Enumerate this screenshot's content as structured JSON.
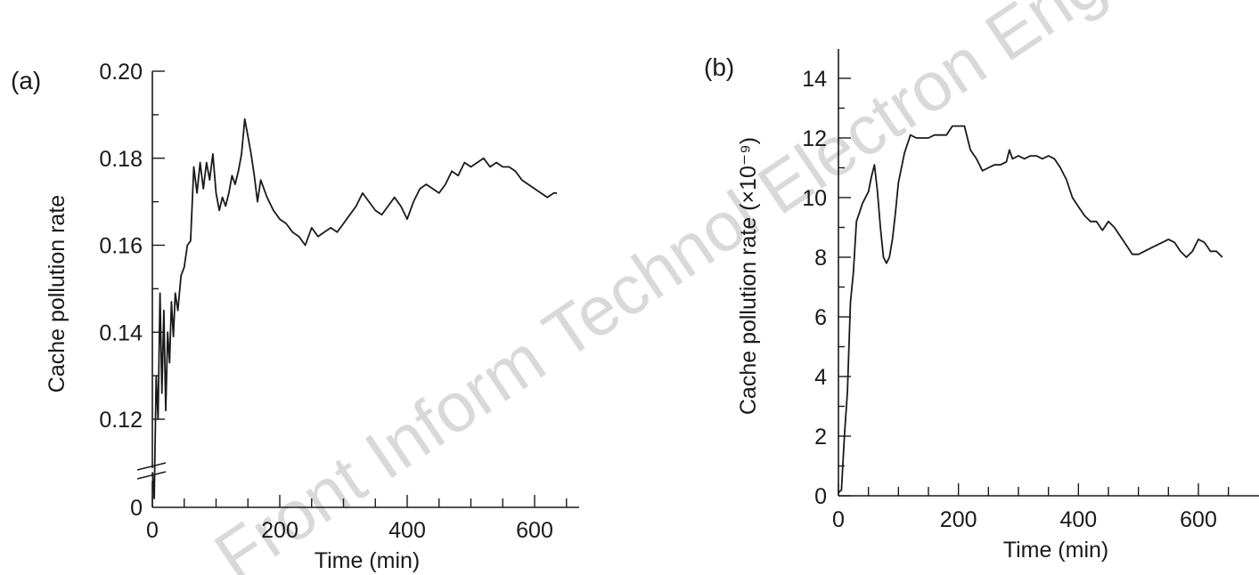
{
  "watermark": "Front Inform Technol Electron Eng",
  "chart_data": [
    {
      "panel_label": "(a)",
      "type": "line",
      "xlabel": "Time (min)",
      "ylabel": "Cache pollution rate",
      "x_ticks": [
        "0",
        "200",
        "400",
        "600"
      ],
      "y_ticks": [
        "0",
        "0.12",
        "0.14",
        "0.16",
        "0.18",
        "0.20"
      ],
      "xlim": [
        0,
        700
      ],
      "ylim": [
        0.1,
        0.2
      ],
      "axis_break": "between 0 and 0.12",
      "grid": false,
      "series": [
        {
          "x": [
            0,
            3,
            6,
            9,
            12,
            15,
            18,
            21,
            24,
            27,
            30,
            33,
            36,
            40,
            45,
            50,
            55,
            60,
            65,
            70,
            75,
            80,
            85,
            90,
            95,
            100,
            105,
            110,
            115,
            120,
            125,
            130,
            135,
            140,
            145,
            150,
            155,
            160,
            165,
            170,
            180,
            190,
            200,
            210,
            220,
            230,
            240,
            250,
            260,
            270,
            280,
            290,
            300,
            310,
            320,
            330,
            340,
            350,
            360,
            370,
            380,
            390,
            400,
            410,
            420,
            430,
            440,
            450,
            460,
            470,
            480,
            490,
            500,
            510,
            520,
            530,
            540,
            550,
            560,
            570,
            580,
            590,
            600,
            610,
            620,
            630,
            635
          ],
          "y": [
            0.108,
            0.102,
            0.13,
            0.12,
            0.149,
            0.126,
            0.145,
            0.122,
            0.14,
            0.133,
            0.147,
            0.139,
            0.149,
            0.145,
            0.153,
            0.155,
            0.16,
            0.161,
            0.178,
            0.172,
            0.179,
            0.173,
            0.179,
            0.175,
            0.181,
            0.172,
            0.168,
            0.171,
            0.169,
            0.172,
            0.176,
            0.174,
            0.177,
            0.181,
            0.189,
            0.185,
            0.181,
            0.176,
            0.17,
            0.175,
            0.171,
            0.168,
            0.166,
            0.165,
            0.163,
            0.162,
            0.16,
            0.164,
            0.162,
            0.163,
            0.164,
            0.163,
            0.165,
            0.167,
            0.169,
            0.172,
            0.17,
            0.168,
            0.167,
            0.169,
            0.171,
            0.169,
            0.166,
            0.17,
            0.173,
            0.174,
            0.173,
            0.172,
            0.174,
            0.177,
            0.176,
            0.179,
            0.178,
            0.179,
            0.18,
            0.178,
            0.179,
            0.178,
            0.178,
            0.177,
            0.175,
            0.174,
            0.173,
            0.172,
            0.171,
            0.172,
            0.172
          ]
        }
      ]
    },
    {
      "panel_label": "(b)",
      "type": "line",
      "xlabel": "Time (min)",
      "ylabel": "Cache pollution rate (×10⁻⁹)",
      "x_ticks": [
        "0",
        "200",
        "400",
        "600"
      ],
      "y_ticks": [
        "0",
        "2",
        "4",
        "6",
        "8",
        "10",
        "12",
        "14"
      ],
      "xlim": [
        0,
        700
      ],
      "ylim": [
        0,
        15
      ],
      "grid": false,
      "series": [
        {
          "x": [
            0,
            5,
            10,
            15,
            20,
            25,
            30,
            35,
            40,
            45,
            50,
            55,
            60,
            65,
            70,
            75,
            80,
            85,
            90,
            95,
            100,
            110,
            120,
            130,
            140,
            150,
            160,
            170,
            180,
            190,
            200,
            210,
            220,
            230,
            240,
            250,
            260,
            270,
            280,
            285,
            290,
            300,
            310,
            320,
            330,
            340,
            350,
            360,
            370,
            380,
            390,
            400,
            410,
            420,
            430,
            440,
            450,
            460,
            470,
            480,
            490,
            500,
            510,
            520,
            530,
            540,
            550,
            560,
            570,
            580,
            590,
            600,
            610,
            620,
            630,
            640
          ],
          "y": [
            0.1,
            0.2,
            2.0,
            3.5,
            6.5,
            7.5,
            9.2,
            9.5,
            9.8,
            10.0,
            10.2,
            10.7,
            11.1,
            10.2,
            9.0,
            8.0,
            7.8,
            8.0,
            8.6,
            9.5,
            10.5,
            11.5,
            12.1,
            12.0,
            12.0,
            12.0,
            12.1,
            12.1,
            12.1,
            12.4,
            12.4,
            12.4,
            11.6,
            11.3,
            10.9,
            11.0,
            11.1,
            11.1,
            11.2,
            11.6,
            11.3,
            11.4,
            11.3,
            11.4,
            11.4,
            11.3,
            11.4,
            11.3,
            11.0,
            10.6,
            10.0,
            9.7,
            9.4,
            9.2,
            9.2,
            8.9,
            9.2,
            9.0,
            8.7,
            8.4,
            8.1,
            8.1,
            8.2,
            8.3,
            8.4,
            8.5,
            8.6,
            8.5,
            8.2,
            8.0,
            8.2,
            8.6,
            8.5,
            8.2,
            8.2,
            8.0
          ]
        }
      ]
    }
  ]
}
